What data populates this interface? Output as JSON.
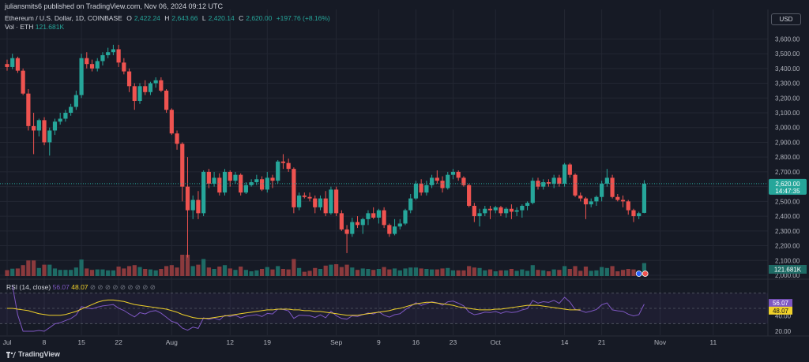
{
  "header": {
    "published": "juliansmits6 published on TradingView.com, Nov 06, 2024 09:12 UTC",
    "symbol": "Ethereum / U.S. Dollar, 1D, COINBASE",
    "o_label": "O",
    "o_val": "2,422.24",
    "h_label": "H",
    "h_val": "2,643.66",
    "l_label": "L",
    "l_val": "2,420.14",
    "c_label": "C",
    "c_val": "2,620.00",
    "change": "+197.76 (+8.16%)",
    "vol_label": "Vol · ETH",
    "vol_val": "121.681K"
  },
  "currency_button": "USD",
  "rsi_legend": {
    "label": "RSI (14, close)",
    "rsi": "56.07",
    "ma": "48.07",
    "icons": "⊘ ⊘ ⊘ ⊘ ⊘ ⊘ ⊘ ⊘ ⊘"
  },
  "footer": {
    "brand": "TradingView"
  },
  "price_label": "2,620.00",
  "countdown_label": "14:47:35",
  "volume_label": "121.681K",
  "rsi_badge": "56.07",
  "ma_badge": "48.07",
  "colors": {
    "up": "#26a69a",
    "down": "#ef5350",
    "up_vol": "#1e6b65",
    "down_vol": "#8b3a3d",
    "rsi": "#7e57c2",
    "rsi_ma": "#f0d12a",
    "bg": "#161a25"
  },
  "chart_data": {
    "type": "candlestick",
    "yticks": [
      "3,600.00",
      "3,500.00",
      "3,400.00",
      "3,300.00",
      "3,200.00",
      "3,100.00",
      "3,000.00",
      "2,900.00",
      "2,800.00",
      "2,700.00",
      "2,600.00",
      "2,500.00",
      "2,400.00",
      "2,300.00",
      "2,200.00",
      "2,100.00",
      "2,000.00"
    ],
    "ylim": [
      2000,
      3650
    ],
    "rsi_ticks": [
      "40.00",
      "20.00"
    ],
    "rsi_ylim": [
      20,
      80
    ],
    "x_ticks": [
      {
        "label": "Jul",
        "i": 0
      },
      {
        "label": "8",
        "i": 7
      },
      {
        "label": "15",
        "i": 14
      },
      {
        "label": "22",
        "i": 21
      },
      {
        "label": "Aug",
        "i": 31
      },
      {
        "label": "12",
        "i": 42
      },
      {
        "label": "19",
        "i": 49
      },
      {
        "label": "Sep",
        "i": 62
      },
      {
        "label": "9",
        "i": 70
      },
      {
        "label": "16",
        "i": 77
      },
      {
        "label": "23",
        "i": 84
      },
      {
        "label": "Oct",
        "i": 92
      },
      {
        "label": "14",
        "i": 105
      },
      {
        "label": "21",
        "i": 112
      },
      {
        "label": "Nov",
        "i": 123
      },
      {
        "label": "11",
        "i": 133
      }
    ],
    "candles": [
      [
        3430,
        3460,
        3385,
        3410
      ],
      [
        3410,
        3500,
        3395,
        3470
      ],
      [
        3470,
        3480,
        3370,
        3385
      ],
      [
        3385,
        3400,
        3220,
        3230
      ],
      [
        3230,
        3260,
        2980,
        3010
      ],
      [
        3010,
        3100,
        2820,
        2980
      ],
      [
        2980,
        3060,
        2940,
        3050
      ],
      [
        3050,
        3070,
        2880,
        2900
      ],
      [
        2900,
        3000,
        2810,
        2980
      ],
      [
        2980,
        3060,
        2950,
        3040
      ],
      [
        3040,
        3100,
        3020,
        3060
      ],
      [
        3060,
        3120,
        3040,
        3100
      ],
      [
        3100,
        3160,
        3080,
        3140
      ],
      [
        3140,
        3250,
        3120,
        3220
      ],
      [
        3220,
        3500,
        3200,
        3470
      ],
      [
        3470,
        3510,
        3400,
        3430
      ],
      [
        3430,
        3460,
        3380,
        3400
      ],
      [
        3400,
        3470,
        3380,
        3450
      ],
      [
        3450,
        3510,
        3420,
        3490
      ],
      [
        3490,
        3540,
        3470,
        3510
      ],
      [
        3510,
        3560,
        3490,
        3530
      ],
      [
        3530,
        3560,
        3410,
        3440
      ],
      [
        3440,
        3470,
        3360,
        3380
      ],
      [
        3380,
        3400,
        3240,
        3280
      ],
      [
        3280,
        3300,
        3120,
        3180
      ],
      [
        3180,
        3300,
        3160,
        3280
      ],
      [
        3280,
        3320,
        3220,
        3240
      ],
      [
        3240,
        3310,
        3220,
        3300
      ],
      [
        3300,
        3340,
        3270,
        3320
      ],
      [
        3320,
        3340,
        3240,
        3250
      ],
      [
        3250,
        3260,
        3100,
        3120
      ],
      [
        3120,
        3130,
        2950,
        2960
      ],
      [
        2960,
        2980,
        2850,
        2890
      ],
      [
        2890,
        2900,
        2500,
        2600
      ],
      [
        2600,
        2800,
        2120,
        2440
      ],
      [
        2440,
        2540,
        2380,
        2510
      ],
      [
        2510,
        2570,
        2380,
        2420
      ],
      [
        2420,
        2710,
        2400,
        2700
      ],
      [
        2700,
        2720,
        2590,
        2620
      ],
      [
        2620,
        2700,
        2600,
        2660
      ],
      [
        2660,
        2690,
        2540,
        2560
      ],
      [
        2560,
        2720,
        2540,
        2700
      ],
      [
        2700,
        2710,
        2600,
        2640
      ],
      [
        2640,
        2700,
        2620,
        2680
      ],
      [
        2680,
        2690,
        2540,
        2560
      ],
      [
        2560,
        2630,
        2550,
        2610
      ],
      [
        2610,
        2650,
        2600,
        2630
      ],
      [
        2630,
        2680,
        2610,
        2650
      ],
      [
        2650,
        2670,
        2570,
        2580
      ],
      [
        2580,
        2700,
        2560,
        2660
      ],
      [
        2660,
        2680,
        2590,
        2640
      ],
      [
        2640,
        2780,
        2620,
        2770
      ],
      [
        2770,
        2820,
        2720,
        2760
      ],
      [
        2760,
        2790,
        2700,
        2720
      ],
      [
        2720,
        2730,
        2420,
        2460
      ],
      [
        2460,
        2560,
        2440,
        2540
      ],
      [
        2540,
        2560,
        2520,
        2530
      ],
      [
        2530,
        2560,
        2500,
        2520
      ],
      [
        2520,
        2540,
        2420,
        2460
      ],
      [
        2460,
        2540,
        2440,
        2520
      ],
      [
        2520,
        2570,
        2400,
        2420
      ],
      [
        2420,
        2600,
        2410,
        2580
      ],
      [
        2580,
        2600,
        2400,
        2420
      ],
      [
        2420,
        2440,
        2300,
        2310
      ],
      [
        2310,
        2340,
        2150,
        2280
      ],
      [
        2280,
        2390,
        2260,
        2360
      ],
      [
        2360,
        2400,
        2320,
        2340
      ],
      [
        2340,
        2390,
        2280,
        2380
      ],
      [
        2380,
        2440,
        2340,
        2420
      ],
      [
        2420,
        2460,
        2380,
        2390
      ],
      [
        2390,
        2450,
        2350,
        2440
      ],
      [
        2440,
        2460,
        2320,
        2340
      ],
      [
        2340,
        2350,
        2260,
        2280
      ],
      [
        2280,
        2380,
        2270,
        2330
      ],
      [
        2330,
        2380,
        2310,
        2350
      ],
      [
        2350,
        2450,
        2340,
        2440
      ],
      [
        2440,
        2550,
        2420,
        2520
      ],
      [
        2520,
        2640,
        2510,
        2620
      ],
      [
        2620,
        2650,
        2540,
        2560
      ],
      [
        2560,
        2640,
        2540,
        2610
      ],
      [
        2610,
        2680,
        2590,
        2660
      ],
      [
        2660,
        2710,
        2620,
        2640
      ],
      [
        2640,
        2670,
        2560,
        2590
      ],
      [
        2590,
        2700,
        2580,
        2680
      ],
      [
        2680,
        2720,
        2650,
        2700
      ],
      [
        2700,
        2710,
        2640,
        2660
      ],
      [
        2660,
        2670,
        2600,
        2610
      ],
      [
        2610,
        2620,
        2460,
        2470
      ],
      [
        2470,
        2490,
        2360,
        2400
      ],
      [
        2400,
        2450,
        2330,
        2420
      ],
      [
        2420,
        2470,
        2400,
        2450
      ],
      [
        2450,
        2470,
        2380,
        2440
      ],
      [
        2440,
        2470,
        2420,
        2460
      ],
      [
        2460,
        2470,
        2400,
        2420
      ],
      [
        2420,
        2460,
        2390,
        2450
      ],
      [
        2450,
        2480,
        2380,
        2430
      ],
      [
        2430,
        2460,
        2400,
        2440
      ],
      [
        2440,
        2480,
        2390,
        2470
      ],
      [
        2470,
        2500,
        2440,
        2490
      ],
      [
        2490,
        2660,
        2480,
        2640
      ],
      [
        2640,
        2660,
        2580,
        2600
      ],
      [
        2600,
        2650,
        2580,
        2630
      ],
      [
        2630,
        2650,
        2600,
        2620
      ],
      [
        2620,
        2680,
        2590,
        2660
      ],
      [
        2660,
        2680,
        2600,
        2620
      ],
      [
        2620,
        2760,
        2600,
        2750
      ],
      [
        2750,
        2760,
        2660,
        2680
      ],
      [
        2680,
        2690,
        2530,
        2540
      ],
      [
        2540,
        2560,
        2500,
        2520
      ],
      [
        2520,
        2530,
        2380,
        2480
      ],
      [
        2480,
        2520,
        2460,
        2500
      ],
      [
        2500,
        2540,
        2470,
        2530
      ],
      [
        2530,
        2640,
        2500,
        2620
      ],
      [
        2620,
        2720,
        2600,
        2660
      ],
      [
        2660,
        2680,
        2520,
        2530
      ],
      [
        2530,
        2550,
        2500,
        2510
      ],
      [
        2510,
        2540,
        2460,
        2500
      ],
      [
        2500,
        2510,
        2410,
        2440
      ],
      [
        2440,
        2450,
        2360,
        2400
      ],
      [
        2400,
        2430,
        2380,
        2420
      ],
      [
        2422.24,
        2643.66,
        2420.14,
        2620
      ]
    ],
    "volume_label_series": "Vol · ETH",
    "rsi_ma_series": [
      50,
      50,
      49,
      48,
      47,
      45,
      43,
      42,
      41,
      41,
      41,
      42,
      44,
      46,
      49,
      52,
      55,
      58,
      60,
      61,
      61,
      60,
      59,
      57,
      55,
      54,
      53,
      52,
      51,
      50,
      49,
      47,
      45,
      42,
      40,
      38,
      37,
      37,
      37,
      38,
      39,
      40,
      41,
      42,
      43,
      44,
      45,
      46,
      47,
      48,
      48,
      49,
      49,
      49,
      48,
      48,
      47,
      47,
      46,
      46,
      45,
      44,
      43,
      42,
      41,
      41,
      41,
      42,
      43,
      44,
      45,
      46,
      47,
      49,
      50,
      52,
      54,
      56,
      57,
      58,
      58,
      57,
      56,
      55,
      54,
      52,
      51,
      50,
      49,
      48,
      48,
      48,
      49,
      49,
      50,
      51,
      52,
      53,
      54,
      54,
      54,
      53,
      52,
      51,
      50,
      49,
      48,
      48,
      48.07
    ]
  }
}
